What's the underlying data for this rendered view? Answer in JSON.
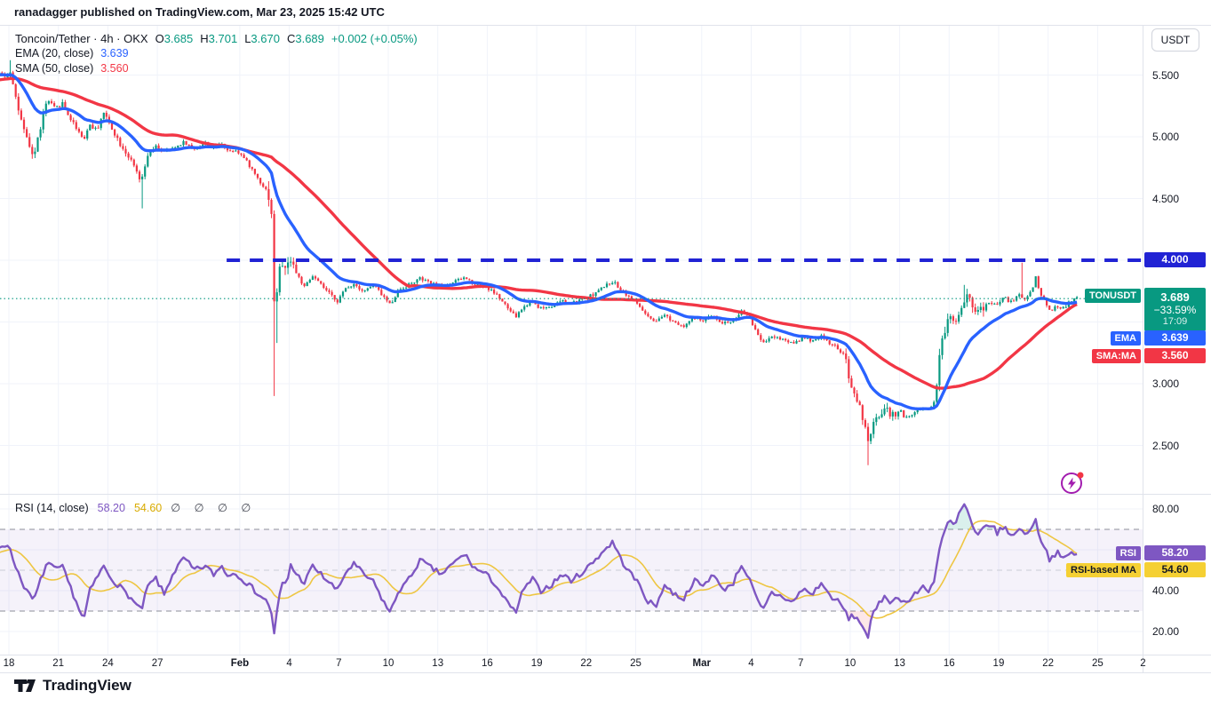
{
  "top_bar": {
    "publish_text": "ranadagger published on TradingView.com, Mar 23, 2025 15:42 UTC"
  },
  "legend": {
    "symbol_line": {
      "title": "Toncoin/Tether · 4h · OKX",
      "o_label": "O",
      "o_value": "3.685",
      "h_label": "H",
      "h_value": "3.701",
      "l_label": "L",
      "l_value": "3.670",
      "c_label": "C",
      "c_value": "3.689",
      "change": "+0.002 (+0.05%)"
    },
    "ema_line": {
      "label": "EMA (20, close)",
      "value": "3.639"
    },
    "sma_line": {
      "label": "SMA (50, close)",
      "value": "3.560"
    }
  },
  "rsi_legend": {
    "label": "RSI (14, close)",
    "value": "58.20",
    "ma_value": "54.60",
    "empty_sets": "∅ ∅ ∅ ∅"
  },
  "price_axis": {
    "currency_button": "USDT",
    "labeled_ticks": [
      {
        "label": "5.500",
        "price": 5.5
      },
      {
        "label": "5.000",
        "price": 5.0
      },
      {
        "label": "4.500",
        "price": 4.5
      },
      {
        "label": "3.000",
        "price": 3.0
      },
      {
        "label": "2.500",
        "price": 2.5
      }
    ],
    "level_badge": {
      "value": "4.000"
    },
    "symbol_badge": {
      "label": "TONUSDT",
      "price": "3.689",
      "change_pct": "−33.59%",
      "countdown": "17:09"
    },
    "ema_badge": {
      "label": "EMA",
      "value": "3.639"
    },
    "sma_badge": {
      "label": "SMA:MA",
      "value": "3.560"
    }
  },
  "rsi_axis": {
    "labeled_ticks": [
      {
        "label": "80.00",
        "value": 80
      },
      {
        "label": "40.00",
        "value": 40
      },
      {
        "label": "20.00",
        "value": 20
      }
    ],
    "rsi_badge": {
      "label": "RSI",
      "value": "58.20"
    },
    "ma_badge": {
      "label": "RSI-based MA",
      "value": "54.60"
    }
  },
  "footer": {
    "brand": "TradingView"
  },
  "colors": {
    "up": "#089981",
    "down": "#f23645",
    "ema": "#2962ff",
    "sma": "#f23645",
    "level_line": "#2123d4",
    "current_price_line": "#089981",
    "rsi": "#7e57c2",
    "rsi_ma": "#eec643",
    "band_fill": "rgba(126,87,194,0.08)",
    "band_edge": "#8c8f99",
    "band_mid": "#c9ccd6",
    "overbought_fill": "rgba(8,153,129,0.15)",
    "oversold_fill": "rgba(242,54,69,0.12)",
    "grid": "#f0f3fa",
    "separator": "#e0e3eb",
    "symbol_badge_bg": "#089981",
    "ema_badge_bg": "#2962ff",
    "sma_badge_bg": "#f23645",
    "rsi_badge_bg": "#7e57c2",
    "rsima_badge_bg": "#f5d033",
    "boost": "#a21caf"
  },
  "chart_data": {
    "type": "candlestick",
    "symbol": "TONUSDT",
    "exchange": "OKX",
    "interval": "4h",
    "title": "Toncoin/Tether · 4h · OKX",
    "ohlc_current": {
      "open": 3.685,
      "high": 3.701,
      "low": 3.67,
      "close": 3.689,
      "change": 0.002,
      "change_pct": 0.05
    },
    "indicators": [
      {
        "name": "EMA",
        "length": 20,
        "source": "close",
        "value": 3.639
      },
      {
        "name": "SMA",
        "length": 50,
        "source": "close",
        "value": 3.56
      },
      {
        "name": "RSI",
        "length": 14,
        "source": "close",
        "value": 58.2,
        "ma_value": 54.6
      }
    ],
    "price_axis": {
      "grid_ticks": [
        5.5,
        5.0,
        4.5,
        4.0,
        3.5,
        3.0,
        2.5
      ],
      "visible_range": [
        2.3,
        5.7
      ]
    },
    "rsi_axis": {
      "grid_ticks": [
        80,
        60,
        40,
        20
      ],
      "band_levels": [
        70,
        50,
        30
      ]
    },
    "level_line": {
      "price": 4.0,
      "start_day": 13.2
    },
    "current_price": 3.689,
    "time_start_date": "Jan 18",
    "days_visible": 69,
    "bar_hours": 4,
    "t_start": -9,
    "t_end": 64.7,
    "time_labels": [
      [
        "18",
        0
      ],
      [
        "21",
        3
      ],
      [
        "24",
        6
      ],
      [
        "27",
        9
      ],
      [
        "Feb",
        14
      ],
      [
        "4",
        17
      ],
      [
        "7",
        20
      ],
      [
        "10",
        23
      ],
      [
        "13",
        26
      ],
      [
        "16",
        29
      ],
      [
        "19",
        32
      ],
      [
        "22",
        35
      ],
      [
        "25",
        38
      ],
      [
        "Mar",
        42
      ],
      [
        "4",
        45
      ],
      [
        "7",
        48
      ],
      [
        "10",
        51
      ],
      [
        "13",
        54
      ],
      [
        "16",
        57
      ],
      [
        "19",
        60
      ],
      [
        "22",
        63
      ],
      [
        "25",
        66
      ],
      [
        "2",
        68.75
      ]
    ],
    "close_keypoints": [
      [
        -9,
        5.35
      ],
      [
        -6,
        5.45
      ],
      [
        -3,
        5.5
      ],
      [
        -1,
        5.52
      ],
      [
        0,
        5.5
      ],
      [
        0.2,
        5.55
      ],
      [
        0.5,
        5.32
      ],
      [
        0.9,
        5.08
      ],
      [
        1.3,
        4.92
      ],
      [
        1.6,
        4.84
      ],
      [
        2,
        5.08
      ],
      [
        2.4,
        5.3
      ],
      [
        2.9,
        5.22
      ],
      [
        3.3,
        5.28
      ],
      [
        3.8,
        5.15
      ],
      [
        4.3,
        5.05
      ],
      [
        4.6,
        4.98
      ],
      [
        5,
        5.1
      ],
      [
        5.4,
        5.05
      ],
      [
        5.8,
        5.2
      ],
      [
        6.3,
        5.08
      ],
      [
        6.8,
        4.95
      ],
      [
        7.3,
        4.85
      ],
      [
        7.8,
        4.72
      ],
      [
        8.1,
        4.62
      ],
      [
        8.5,
        4.85
      ],
      [
        9,
        4.92
      ],
      [
        9.5,
        4.88
      ],
      [
        10,
        4.9
      ],
      [
        10.7,
        4.96
      ],
      [
        11.3,
        4.9
      ],
      [
        12,
        4.95
      ],
      [
        12.5,
        4.9
      ],
      [
        13,
        4.95
      ],
      [
        13.4,
        4.88
      ],
      [
        13.8,
        4.9
      ],
      [
        14.2,
        4.85
      ],
      [
        14.6,
        4.78
      ],
      [
        15,
        4.7
      ],
      [
        15.4,
        4.62
      ],
      [
        15.8,
        4.55
      ],
      [
        16.05,
        4.35
      ],
      [
        16.17,
        3.62
      ],
      [
        16.35,
        3.78
      ],
      [
        16.6,
        4.0
      ],
      [
        16.9,
        3.9
      ],
      [
        17.15,
        4.04
      ],
      [
        17.5,
        3.9
      ],
      [
        18,
        3.78
      ],
      [
        18.5,
        3.87
      ],
      [
        19,
        3.8
      ],
      [
        19.5,
        3.73
      ],
      [
        20,
        3.67
      ],
      [
        20.5,
        3.77
      ],
      [
        21,
        3.81
      ],
      [
        21.6,
        3.75
      ],
      [
        22.2,
        3.8
      ],
      [
        22.7,
        3.72
      ],
      [
        23.2,
        3.64
      ],
      [
        23.7,
        3.76
      ],
      [
        24.3,
        3.8
      ],
      [
        25,
        3.85
      ],
      [
        25.7,
        3.81
      ],
      [
        26.3,
        3.78
      ],
      [
        27,
        3.82
      ],
      [
        27.7,
        3.86
      ],
      [
        28.3,
        3.81
      ],
      [
        29,
        3.78
      ],
      [
        29.6,
        3.73
      ],
      [
        30.2,
        3.63
      ],
      [
        30.8,
        3.54
      ],
      [
        31.2,
        3.61
      ],
      [
        31.8,
        3.67
      ],
      [
        32.3,
        3.61
      ],
      [
        33,
        3.63
      ],
      [
        33.6,
        3.67
      ],
      [
        34.2,
        3.65
      ],
      [
        35,
        3.69
      ],
      [
        35.6,
        3.73
      ],
      [
        36.2,
        3.79
      ],
      [
        36.7,
        3.83
      ],
      [
        37.2,
        3.76
      ],
      [
        37.8,
        3.69
      ],
      [
        38.3,
        3.63
      ],
      [
        38.8,
        3.54
      ],
      [
        39.3,
        3.49
      ],
      [
        39.8,
        3.56
      ],
      [
        40.3,
        3.51
      ],
      [
        41,
        3.47
      ],
      [
        41.6,
        3.53
      ],
      [
        42.2,
        3.51
      ],
      [
        42.8,
        3.56
      ],
      [
        43.3,
        3.49
      ],
      [
        44,
        3.51
      ],
      [
        44.5,
        3.59
      ],
      [
        45,
        3.53
      ],
      [
        45.4,
        3.42
      ],
      [
        45.8,
        3.33
      ],
      [
        46.3,
        3.39
      ],
      [
        47,
        3.36
      ],
      [
        47.6,
        3.33
      ],
      [
        48.2,
        3.37
      ],
      [
        48.8,
        3.35
      ],
      [
        49.3,
        3.39
      ],
      [
        49.8,
        3.33
      ],
      [
        50.3,
        3.29
      ],
      [
        50.8,
        3.21
      ],
      [
        51,
        3.02
      ],
      [
        51.3,
        2.94
      ],
      [
        51.6,
        2.84
      ],
      [
        51.85,
        2.72
      ],
      [
        52,
        2.62
      ],
      [
        52.15,
        2.5
      ],
      [
        52.4,
        2.64
      ],
      [
        52.8,
        2.74
      ],
      [
        53.2,
        2.8
      ],
      [
        53.6,
        2.74
      ],
      [
        54,
        2.78
      ],
      [
        54.5,
        2.72
      ],
      [
        55,
        2.77
      ],
      [
        55.5,
        2.81
      ],
      [
        55.9,
        2.79
      ],
      [
        56.2,
        2.86
      ],
      [
        56.55,
        3.3
      ],
      [
        56.8,
        3.42
      ],
      [
        57.1,
        3.55
      ],
      [
        57.4,
        3.49
      ],
      [
        57.7,
        3.6
      ],
      [
        58,
        3.68
      ],
      [
        58.2,
        3.74
      ],
      [
        58.5,
        3.65
      ],
      [
        58.8,
        3.57
      ],
      [
        59.2,
        3.62
      ],
      [
        59.6,
        3.66
      ],
      [
        60,
        3.64
      ],
      [
        60.4,
        3.7
      ],
      [
        60.8,
        3.66
      ],
      [
        61.3,
        3.72
      ],
      [
        61.7,
        3.68
      ],
      [
        62.1,
        3.76
      ],
      [
        62.35,
        3.87
      ],
      [
        62.6,
        3.73
      ],
      [
        62.9,
        3.66
      ],
      [
        63.2,
        3.59
      ],
      [
        63.6,
        3.63
      ],
      [
        64,
        3.61
      ],
      [
        64.3,
        3.65
      ],
      [
        64.7,
        3.689
      ]
    ],
    "rsi_keypoints": [
      [
        -9,
        58
      ],
      [
        -6,
        60
      ],
      [
        -3,
        56
      ],
      [
        -1,
        60
      ],
      [
        0,
        63
      ],
      [
        0.5,
        52
      ],
      [
        0.9,
        44
      ],
      [
        1.3,
        38
      ],
      [
        1.6,
        35
      ],
      [
        2,
        45
      ],
      [
        2.4,
        54
      ],
      [
        2.9,
        50
      ],
      [
        3.3,
        52
      ],
      [
        3.8,
        42
      ],
      [
        4.3,
        32
      ],
      [
        4.6,
        25
      ],
      [
        5,
        40
      ],
      [
        5.4,
        46
      ],
      [
        5.8,
        52
      ],
      [
        6.3,
        46
      ],
      [
        6.8,
        42
      ],
      [
        7.3,
        38
      ],
      [
        7.8,
        33
      ],
      [
        8.1,
        30
      ],
      [
        8.5,
        42
      ],
      [
        9,
        46
      ],
      [
        9.5,
        38
      ],
      [
        10,
        48
      ],
      [
        10.7,
        56
      ],
      [
        11.3,
        50
      ],
      [
        12,
        52
      ],
      [
        12.5,
        48
      ],
      [
        13,
        52
      ],
      [
        13.4,
        47
      ],
      [
        13.8,
        49
      ],
      [
        14.2,
        46
      ],
      [
        14.6,
        43
      ],
      [
        15,
        40
      ],
      [
        15.4,
        37
      ],
      [
        15.8,
        34
      ],
      [
        16.05,
        28
      ],
      [
        16.17,
        18
      ],
      [
        16.4,
        34
      ],
      [
        16.7,
        45
      ],
      [
        16.9,
        42
      ],
      [
        17.15,
        53
      ],
      [
        17.5,
        48
      ],
      [
        18,
        44
      ],
      [
        18.5,
        52
      ],
      [
        19,
        48
      ],
      [
        19.5,
        44
      ],
      [
        20,
        40
      ],
      [
        20.5,
        49
      ],
      [
        21,
        53
      ],
      [
        21.6,
        48
      ],
      [
        22.2,
        44
      ],
      [
        22.7,
        36
      ],
      [
        23.2,
        29
      ],
      [
        23.7,
        40
      ],
      [
        24.3,
        45
      ],
      [
        25,
        55
      ],
      [
        25.7,
        51
      ],
      [
        26.3,
        48
      ],
      [
        27,
        53
      ],
      [
        27.7,
        58
      ],
      [
        28.3,
        51
      ],
      [
        29,
        48
      ],
      [
        29.6,
        43
      ],
      [
        30.2,
        35
      ],
      [
        30.8,
        29
      ],
      [
        31.2,
        39
      ],
      [
        31.8,
        46
      ],
      [
        32.3,
        40
      ],
      [
        33,
        43
      ],
      [
        33.6,
        48
      ],
      [
        34.2,
        45
      ],
      [
        35,
        50
      ],
      [
        35.6,
        55
      ],
      [
        36.2,
        60
      ],
      [
        36.7,
        64
      ],
      [
        37.2,
        55
      ],
      [
        37.8,
        48
      ],
      [
        38.3,
        43
      ],
      [
        38.8,
        35
      ],
      [
        39.3,
        32
      ],
      [
        39.8,
        43
      ],
      [
        40.3,
        39
      ],
      [
        41,
        36
      ],
      [
        41.6,
        45
      ],
      [
        42.2,
        42
      ],
      [
        42.8,
        49
      ],
      [
        43.3,
        40
      ],
      [
        44,
        44
      ],
      [
        44.5,
        53
      ],
      [
        45,
        45
      ],
      [
        45.4,
        36
      ],
      [
        45.8,
        30
      ],
      [
        46.3,
        39
      ],
      [
        47,
        37
      ],
      [
        47.6,
        34
      ],
      [
        48.2,
        41
      ],
      [
        48.8,
        38
      ],
      [
        49.3,
        44
      ],
      [
        49.8,
        38
      ],
      [
        50.3,
        35
      ],
      [
        50.8,
        30
      ],
      [
        51,
        26
      ],
      [
        51.3,
        28
      ],
      [
        51.6,
        25
      ],
      [
        51.85,
        23
      ],
      [
        52,
        20
      ],
      [
        52.15,
        17
      ],
      [
        52.4,
        27
      ],
      [
        52.8,
        33
      ],
      [
        53.2,
        38
      ],
      [
        53.6,
        34
      ],
      [
        54,
        37
      ],
      [
        54.5,
        34
      ],
      [
        55,
        38
      ],
      [
        55.5,
        42
      ],
      [
        55.9,
        40
      ],
      [
        56.2,
        46
      ],
      [
        56.55,
        63
      ],
      [
        56.8,
        68
      ],
      [
        57.1,
        75
      ],
      [
        57.4,
        71
      ],
      [
        57.7,
        78
      ],
      [
        58,
        82
      ],
      [
        58.2,
        79
      ],
      [
        58.5,
        71
      ],
      [
        58.8,
        66
      ],
      [
        59.2,
        71
      ],
      [
        59.6,
        73
      ],
      [
        60,
        68
      ],
      [
        60.4,
        72
      ],
      [
        60.8,
        66
      ],
      [
        61.3,
        71
      ],
      [
        61.7,
        67
      ],
      [
        62.1,
        72
      ],
      [
        62.35,
        74
      ],
      [
        62.6,
        66
      ],
      [
        62.9,
        61
      ],
      [
        63.2,
        55
      ],
      [
        63.6,
        59
      ],
      [
        64,
        55
      ],
      [
        64.3,
        58
      ],
      [
        64.7,
        58.2
      ]
    ],
    "noise_zones": [
      [
        -0.2,
        2.2,
        0.03
      ],
      [
        2.2,
        9,
        0.02
      ],
      [
        15.7,
        17.6,
        0.05
      ],
      [
        50.8,
        54.3,
        0.032
      ],
      [
        56.3,
        59.2,
        0.042
      ]
    ],
    "base_noise": 0.013,
    "wick_events": [
      {
        "day": 0.2,
        "high": 5.62
      },
      {
        "day": 8.1,
        "low": 4.42
      },
      {
        "day": 16.17,
        "low": 2.9
      },
      {
        "day": 16.33,
        "low": 3.33
      },
      {
        "day": 52.15,
        "low": 2.34
      },
      {
        "day": 58.05,
        "high": 3.8
      },
      {
        "day": 61.55,
        "high": 3.98
      }
    ]
  }
}
